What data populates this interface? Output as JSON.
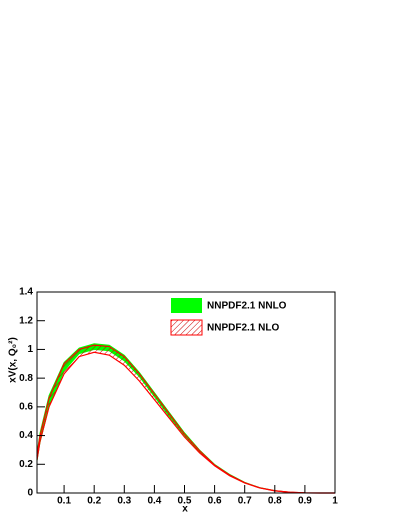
{
  "chart_data": {
    "type": "band",
    "xlabel": "x",
    "ylabel": "xV(x, Q₀²)",
    "x": [
      0.01,
      0.02,
      0.05,
      0.1,
      0.15,
      0.2,
      0.25,
      0.3,
      0.35,
      0.4,
      0.45,
      0.5,
      0.55,
      0.6,
      0.65,
      0.7,
      0.75,
      0.8,
      0.85,
      0.9,
      0.95,
      1
    ],
    "series": [
      {
        "name": "NNPDF2.1 NNLO",
        "color": "#00ff00",
        "hatch": false,
        "upper": [
          0.28,
          0.42,
          0.68,
          0.91,
          1.01,
          1.04,
          1.03,
          0.96,
          0.84,
          0.7,
          0.56,
          0.42,
          0.3,
          0.2,
          0.13,
          0.075,
          0.038,
          0.017,
          0.006,
          0.001,
          0,
          0
        ],
        "lower": [
          0.22,
          0.35,
          0.6,
          0.85,
          0.97,
          1.0,
          0.99,
          0.92,
          0.81,
          0.67,
          0.53,
          0.4,
          0.285,
          0.19,
          0.12,
          0.07,
          0.035,
          0.015,
          0.005,
          0.001,
          0,
          0
        ]
      },
      {
        "name": "NNPDF2.1 NLO",
        "color": "#ff0000",
        "hatch": true,
        "upper": [
          0.26,
          0.4,
          0.66,
          0.9,
          1.0,
          1.03,
          1.02,
          0.95,
          0.83,
          0.69,
          0.55,
          0.41,
          0.295,
          0.195,
          0.125,
          0.072,
          0.036,
          0.016,
          0.005,
          0.001,
          0,
          0
        ],
        "lower": [
          0.23,
          0.36,
          0.6,
          0.83,
          0.95,
          0.98,
          0.96,
          0.89,
          0.78,
          0.65,
          0.52,
          0.39,
          0.28,
          0.19,
          0.12,
          0.07,
          0.035,
          0.015,
          0.005,
          0.001,
          0,
          0
        ]
      }
    ],
    "xlim": [
      0.01,
      1
    ],
    "ylim": [
      0,
      1.4
    ],
    "xticks": [
      0.1,
      0.2,
      0.3,
      0.4,
      0.5,
      0.6,
      0.7,
      0.8,
      0.9,
      1
    ],
    "yticks": [
      0,
      0.2,
      0.4,
      0.6,
      0.8,
      1,
      1.2,
      1.4
    ],
    "legend": "top-right"
  }
}
